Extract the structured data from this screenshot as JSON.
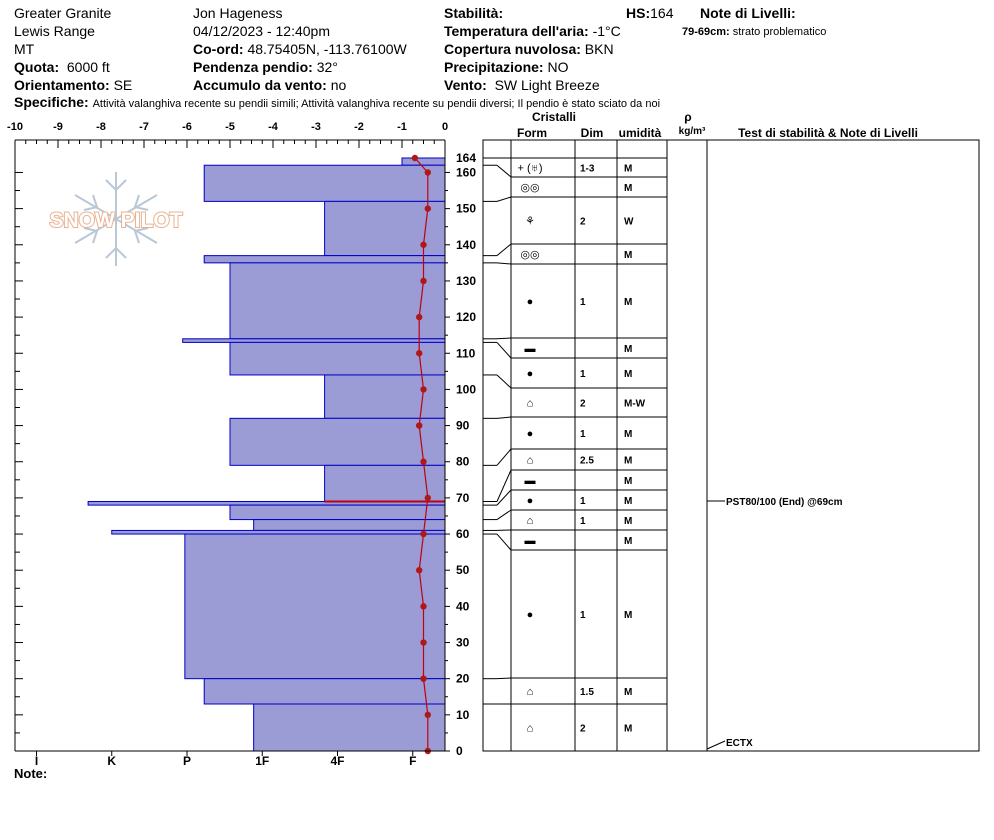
{
  "header": {
    "location": "Greater Granite",
    "range": "Lewis Range",
    "state": "MT",
    "observer": "Jon Hageness",
    "datetime": "04/12/2023 - 12:40pm",
    "quota_label": "Quota:",
    "quota_value": "6000 ft",
    "orient_label": "Orientamento:",
    "orient_value": "SE",
    "coord_label": "Co-ord:",
    "coord_value": "48.75405N, -113.76100W",
    "pendenza_label": "Pendenza pendio:",
    "pendenza_value": "32°",
    "accumulo_label": "Accumulo da vento:",
    "accumulo_value": "no",
    "stab_label": "Stabilità:",
    "hs_label": "HS:",
    "hs_value": "164",
    "temp_label": "Temperatura dell'aria:",
    "temp_value": "-1°C",
    "nuvol_label": "Copertura nuvolosa:",
    "nuvol_value": "BKN",
    "prec_label": "Precipitazione:",
    "prec_value": "NO",
    "vento_label": "Vento:",
    "vento_value": "SW Light Breeze",
    "note_livelli_label": "Note di Livelli:",
    "note_livelli_range": "79-69cm:",
    "note_livelli_text": "strato problematico",
    "spec_label": "Specifiche:",
    "spec_text": "Attività valanghiva recente su pendii simili;  Attività valanghiva recente su pendii diversi;  Il pendio è stato sciato da noi"
  },
  "logo_text": "SNOW PILOT",
  "note_label": "Note:",
  "table_headers": {
    "cristalli": "Cristalli",
    "form": "Form",
    "dim": "Dim",
    "umidita": "umidità",
    "rho": "ρ",
    "rho_unit": "kg/m³",
    "test": "Test di stabilità & Note di Livelli"
  },
  "colors": {
    "hardness_fill": "#9b9bd6",
    "hardness_stroke": "#0000c8",
    "temp_line": "#c0000e",
    "temp_marker": "#b01818"
  },
  "chart_data": {
    "type": "snow-profile",
    "temp_axis": {
      "min": -10,
      "max": 0,
      "ticks": [
        "-10",
        "-9",
        "-8",
        "-7",
        "-6",
        "-5",
        "-4",
        "-3",
        "-2",
        "-1",
        "0"
      ]
    },
    "hardness_axis": {
      "labels": [
        "I",
        "K",
        "P",
        "1F",
        "4F",
        "F"
      ],
      "values": [
        -9.5,
        -7.75,
        -6,
        -4.25,
        -2.5,
        -0.75
      ]
    },
    "height_axis": {
      "min": 0,
      "max": 164,
      "ticks": [
        0,
        10,
        20,
        30,
        40,
        50,
        60,
        70,
        80,
        90,
        100,
        110,
        120,
        130,
        140,
        150,
        160
      ],
      "hs_label": "164"
    },
    "hardness_layers": [
      {
        "top": 164,
        "bottom": 162,
        "hardness": -1
      },
      {
        "top": 162,
        "bottom": 152,
        "hardness": -5.6
      },
      {
        "top": 152,
        "bottom": 137,
        "hardness": -2.8
      },
      {
        "top": 137,
        "bottom": 135,
        "hardness": -5.6
      },
      {
        "top": 135,
        "bottom": 114,
        "hardness": -5
      },
      {
        "top": 114,
        "bottom": 113,
        "hardness": -6.1
      },
      {
        "top": 113,
        "bottom": 104,
        "hardness": -5
      },
      {
        "top": 104,
        "bottom": 92,
        "hardness": -2.8
      },
      {
        "top": 92,
        "bottom": 79,
        "hardness": -5
      },
      {
        "top": 79,
        "bottom": 69,
        "hardness": -2.8
      },
      {
        "top": 69,
        "bottom": 68,
        "hardness": -8.3
      },
      {
        "top": 68,
        "bottom": 64,
        "hardness": -5
      },
      {
        "top": 64,
        "bottom": 61,
        "hardness": -4.45
      },
      {
        "top": 61,
        "bottom": 60,
        "hardness": -7.75
      },
      {
        "top": 60,
        "bottom": 20,
        "hardness": -6.05
      },
      {
        "top": 20,
        "bottom": 13,
        "hardness": -5.6
      },
      {
        "top": 13,
        "bottom": 0,
        "hardness": -4.45
      }
    ],
    "temperature_profile": [
      {
        "h": 164,
        "t": -0.7
      },
      {
        "h": 160,
        "t": -0.4
      },
      {
        "h": 150,
        "t": -0.4
      },
      {
        "h": 140,
        "t": -0.5
      },
      {
        "h": 130,
        "t": -0.5
      },
      {
        "h": 120,
        "t": -0.6
      },
      {
        "h": 110,
        "t": -0.6
      },
      {
        "h": 100,
        "t": -0.5
      },
      {
        "h": 90,
        "t": -0.6
      },
      {
        "h": 80,
        "t": -0.5
      },
      {
        "h": 70,
        "t": -0.4
      },
      {
        "h": 60,
        "t": -0.5
      },
      {
        "h": 50,
        "t": -0.6
      },
      {
        "h": 40,
        "t": -0.5
      },
      {
        "h": 30,
        "t": -0.5
      },
      {
        "h": 20,
        "t": -0.5
      },
      {
        "h": 10,
        "t": -0.4
      },
      {
        "h": 0,
        "t": -0.4
      }
    ],
    "problem_layer_mark": 69,
    "crystal_rows": [
      {
        "top": 162,
        "bottom": 152,
        "form": "+ (♅)",
        "size": "1-3",
        "wet": "M"
      },
      {
        "top": 152,
        "bottom": 137,
        "form": "◎◎",
        "size": "",
        "wet": "M"
      },
      {
        "top": 137,
        "bottom": 135,
        "form": "⚘",
        "size": "2",
        "wet": "W"
      },
      {
        "top": 135,
        "bottom": 114,
        "form": "◎◎",
        "size": "",
        "wet": "M"
      },
      {
        "top": 114,
        "bottom": 104,
        "form": "●",
        "size": "1",
        "wet": "M"
      },
      {
        "top": 104,
        "bottom": 92,
        "form": "▬",
        "size": "",
        "wet": "M"
      },
      {
        "top": 92,
        "bottom": 79,
        "form": "●",
        "size": "1",
        "wet": "M"
      },
      {
        "top": 79,
        "bottom": 69,
        "form": "⌂",
        "size": "2",
        "wet": "M-W"
      },
      {
        "top": 69,
        "bottom": 68,
        "form": "●",
        "size": "1",
        "wet": "M"
      },
      {
        "top": 68,
        "bottom": 64,
        "form": "⌂",
        "size": "2.5",
        "wet": "M"
      },
      {
        "top": 64,
        "bottom": 61,
        "form": "▬",
        "size": "",
        "wet": "M"
      },
      {
        "top": 61,
        "bottom": 60,
        "form": "●",
        "size": "1",
        "wet": "M"
      },
      {
        "top": 60,
        "bottom": 20,
        "form": "⌂",
        "size": "1",
        "wet": "M"
      },
      {
        "top": 20,
        "bottom": 13,
        "form": "▬",
        "size": "",
        "wet": "M"
      },
      {
        "top": 13,
        "bottom": 0,
        "form": "●",
        "size": "1",
        "wet": "M"
      }
    ],
    "crystal_rows_extra": [
      {
        "form": "⌂",
        "size": "1.5",
        "wet": "M"
      },
      {
        "form": "⌂",
        "size": "2",
        "wet": "M"
      }
    ],
    "tests": [
      {
        "h": 69,
        "label": "PST80/100 (End) @69cm"
      },
      {
        "h": 0,
        "label": "ECTX"
      }
    ]
  }
}
